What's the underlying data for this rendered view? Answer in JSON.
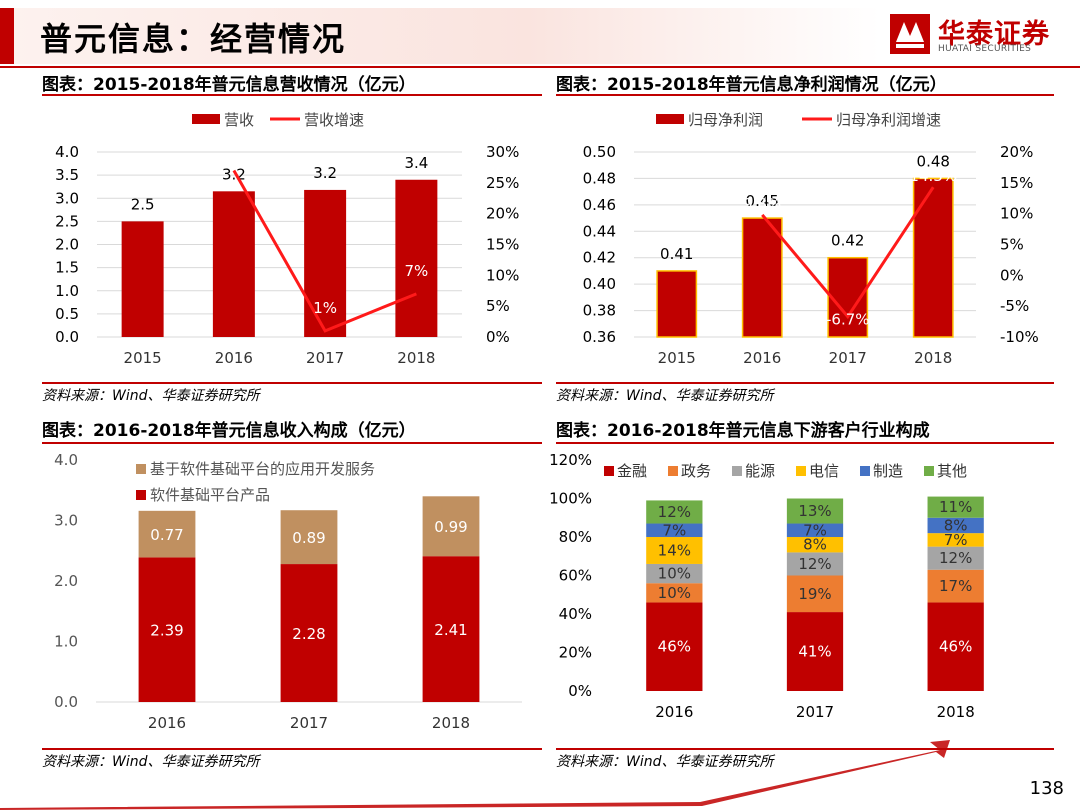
{
  "header": {
    "title": "普元信息：经营情况",
    "logo_name": "华泰证券",
    "logo_sub": "HUATAI SECURITIES"
  },
  "panels": [
    {
      "title": "图表：2015-2018年普元信息营收情况（亿元）",
      "source": "资料来源：Wind、华泰证券研究所"
    },
    {
      "title": "图表：2015-2018年普元信息净利润情况（亿元）",
      "source": "资料来源：Wind、华泰证券研究所"
    },
    {
      "title": "图表：2016-2018年普元信息收入构成（亿元）",
      "source": "资料来源：Wind、华泰证券研究所"
    },
    {
      "title": "图表：2016-2018年普元信息下游客户行业构成",
      "source": "资料来源：Wind、华泰证券研究所"
    }
  ],
  "page_number": "138",
  "colors": {
    "red": "#c00000",
    "line": "#ff1a1a",
    "tan": "#c09060",
    "grid": "#d9d9d9"
  },
  "chart_data": [
    {
      "type": "bar",
      "categories": [
        "2015",
        "2016",
        "2017",
        "2018"
      ],
      "series": [
        {
          "name": "营收",
          "type": "bar",
          "values": [
            2.5,
            3.15,
            3.18,
            3.4
          ],
          "labels": [
            "2.5",
            "3.2",
            "3.2",
            "3.4"
          ]
        },
        {
          "name": "营收增速",
          "type": "line",
          "axis": "right",
          "values": [
            null,
            27,
            1,
            7
          ],
          "labels": [
            "",
            "",
            "1%",
            "7%"
          ]
        }
      ],
      "ylim": [
        0,
        4.0
      ],
      "yticks": [
        "0.0",
        "0.5",
        "1.0",
        "1.5",
        "2.0",
        "2.5",
        "3.0",
        "3.5",
        "4.0"
      ],
      "y2lim": [
        0,
        30
      ],
      "y2ticks": [
        "0%",
        "5%",
        "10%",
        "15%",
        "20%",
        "25%",
        "30%"
      ]
    },
    {
      "type": "bar",
      "categories": [
        "2015",
        "2016",
        "2017",
        "2018"
      ],
      "series": [
        {
          "name": "归母净利润",
          "type": "bar",
          "values": [
            0.41,
            0.45,
            0.42,
            0.48
          ],
          "labels": [
            "0.41",
            "0.45",
            "0.42",
            "0.48"
          ]
        },
        {
          "name": "归母净利润增速",
          "type": "line",
          "axis": "right",
          "values": [
            null,
            9.8,
            -6.7,
            14.3
          ],
          "labels": [
            "",
            "9.8%",
            "-6.7%",
            "14.3%"
          ]
        }
      ],
      "ylim": [
        0.36,
        0.5
      ],
      "yticks": [
        "0.36",
        "0.38",
        "0.40",
        "0.42",
        "0.44",
        "0.46",
        "0.48",
        "0.50"
      ],
      "y2lim": [
        -10,
        20
      ],
      "y2ticks": [
        "-10%",
        "-5%",
        "0%",
        "5%",
        "10%",
        "15%",
        "20%"
      ]
    },
    {
      "type": "bar",
      "stacked": true,
      "categories": [
        "2016",
        "2017",
        "2018"
      ],
      "series": [
        {
          "name": "软件基础平台产品",
          "values": [
            2.39,
            2.28,
            2.41
          ],
          "labels": [
            "2.39",
            "2.28",
            "2.41"
          ]
        },
        {
          "name": "基于软件基础平台的应用开发服务",
          "values": [
            0.77,
            0.89,
            0.99
          ],
          "labels": [
            "0.77",
            "0.89",
            "0.99"
          ]
        }
      ],
      "ylim": [
        0,
        4.0
      ],
      "yticks": [
        "0.0",
        "1.0",
        "2.0",
        "3.0",
        "4.0"
      ]
    },
    {
      "type": "bar",
      "stacked": true,
      "categories": [
        "2016",
        "2017",
        "2018"
      ],
      "series": [
        {
          "name": "金融",
          "color": "#c00000",
          "values": [
            46,
            41,
            46
          ]
        },
        {
          "name": "政务",
          "color": "#ed7d31",
          "values": [
            10,
            19,
            17
          ]
        },
        {
          "name": "能源",
          "color": "#a5a5a5",
          "values": [
            10,
            12,
            12
          ]
        },
        {
          "name": "电信",
          "color": "#ffc000",
          "values": [
            14,
            8,
            7
          ]
        },
        {
          "name": "制造",
          "color": "#4472c4",
          "values": [
            7,
            7,
            8
          ]
        },
        {
          "name": "其他",
          "color": "#70ad47",
          "values": [
            12,
            13,
            11
          ]
        }
      ],
      "ylim": [
        0,
        120
      ],
      "yticks": [
        "0%",
        "20%",
        "40%",
        "60%",
        "80%",
        "100%",
        "120%"
      ]
    }
  ]
}
